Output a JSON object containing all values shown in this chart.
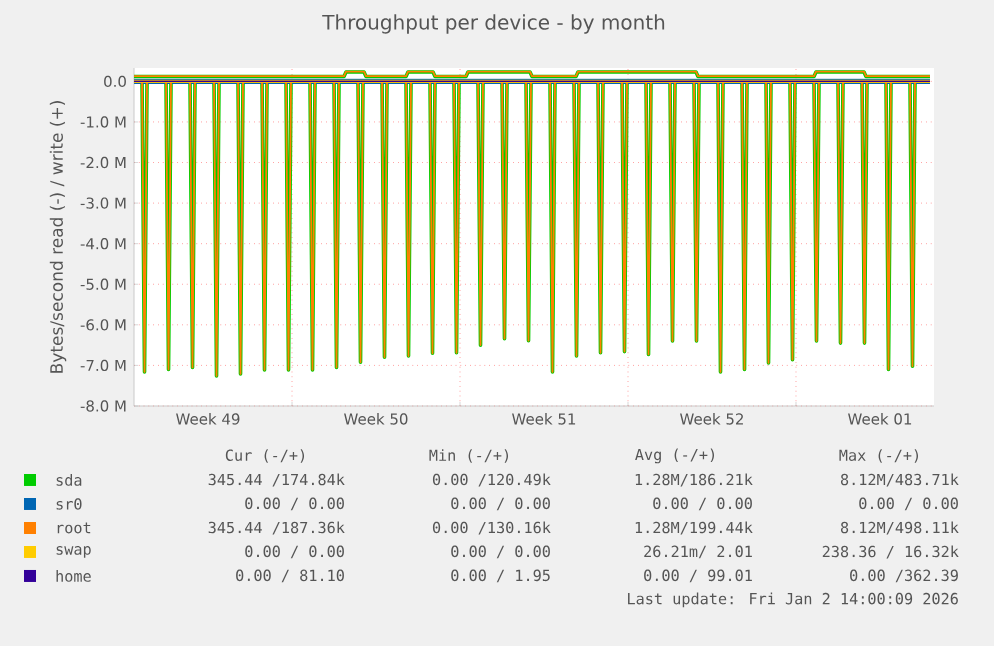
{
  "chart_data": {
    "type": "line",
    "title": "Throughput per device - by month",
    "ylabel": "Bytes/second read (-) / write (+)",
    "x": [
      "2025-12-01T18:00",
      "2025-12-01T20:30",
      "2025-12-01T23:00",
      "2025-12-02T18:00",
      "2025-12-02T20:30",
      "2025-12-02T23:00",
      "2025-12-03T18:00",
      "2025-12-03T20:30",
      "2025-12-03T23:00",
      "2025-12-04T18:00",
      "2025-12-04T20:30",
      "2025-12-04T23:00",
      "2025-12-05T18:00",
      "2025-12-05T20:30",
      "2025-12-05T23:00",
      "2025-12-06T18:00",
      "2025-12-06T20:30",
      "2025-12-06T23:00",
      "2025-12-07T18:00",
      "2025-12-07T20:30",
      "2025-12-07T23:00",
      "2025-12-08T18:00",
      "2025-12-08T20:30",
      "2025-12-08T23:00",
      "2025-12-09T18:00",
      "2025-12-09T20:30",
      "2025-12-09T23:00",
      "2025-12-10T18:00",
      "2025-12-10T20:30",
      "2025-12-10T23:00",
      "2025-12-11T18:00",
      "2025-12-11T20:30",
      "2025-12-11T23:00",
      "2025-12-12T18:00",
      "2025-12-12T20:30",
      "2025-12-12T23:00",
      "2025-12-13T18:00",
      "2025-12-13T20:30",
      "2025-12-13T23:00",
      "2025-12-14T18:00",
      "2025-12-14T20:30",
      "2025-12-14T23:00",
      "2025-12-15T18:00",
      "2025-12-15T20:30",
      "2025-12-15T23:00",
      "2025-12-16T18:00",
      "2025-12-16T20:30",
      "2025-12-16T23:00",
      "2025-12-17T18:00",
      "2025-12-17T20:30",
      "2025-12-17T23:00",
      "2025-12-18T18:00",
      "2025-12-18T20:30",
      "2025-12-18T23:00",
      "2025-12-19T18:00",
      "2025-12-19T20:30",
      "2025-12-19T23:00",
      "2025-12-20T18:00",
      "2025-12-20T20:30",
      "2025-12-20T23:00",
      "2025-12-21T18:00",
      "2025-12-21T20:30",
      "2025-12-21T23:00",
      "2025-12-22T18:00",
      "2025-12-22T20:30",
      "2025-12-22T23:00",
      "2025-12-23T18:00",
      "2025-12-23T20:30",
      "2025-12-23T23:00",
      "2025-12-24T18:00",
      "2025-12-24T20:30",
      "2025-12-24T23:00",
      "2025-12-25T18:00",
      "2025-12-25T20:30",
      "2025-12-25T23:00",
      "2025-12-26T18:00",
      "2025-12-26T20:30",
      "2025-12-26T23:00",
      "2025-12-27T18:00",
      "2025-12-27T20:30",
      "2025-12-27T23:00",
      "2025-12-28T18:00",
      "2025-12-28T20:30",
      "2025-12-28T23:00",
      "2025-12-29T18:00",
      "2025-12-29T20:30",
      "2025-12-29T23:00",
      "2025-12-30T18:00",
      "2025-12-30T20:30",
      "2025-12-30T23:00",
      "2025-12-31T18:00",
      "2025-12-31T20:30",
      "2025-12-31T23:00",
      "2026-01-01T18:00",
      "2026-01-01T20:30",
      "2026-01-01T23:00",
      "2026-01-02T18:00",
      "2026-01-02T20:30",
      "2026-01-02T23:00"
    ],
    "series": [
      {
        "name": "sda",
        "color": "#00cc00",
        "x": [
          "2025-12-01T10:00",
          "2025-12-10T04:00",
          "2025-12-10T06:00",
          "2025-12-11T00:00",
          "2025-12-11T02:00",
          "2025-12-12T18:00",
          "2025-12-12T20:00",
          "2025-12-13T21:00",
          "2025-12-13T23:00",
          "2025-12-15T06:00",
          "2025-12-15T08:00",
          "2025-12-17T22:00",
          "2025-12-18T00:00",
          "2025-12-19T20:00",
          "2025-12-19T22:00",
          "2025-12-24T20:00",
          "2025-12-24T22:00",
          "2025-12-29T18:00",
          "2025-12-29T20:00",
          "2025-12-31T20:00",
          "2025-12-31T22:00",
          "2026-01-03T14:00"
        ],
        "values": [
          120000,
          120000,
          230000,
          230000,
          120000,
          120000,
          230000,
          230000,
          120000,
          120000,
          230000,
          230000,
          120000,
          120000,
          230000,
          230000,
          120000,
          120000,
          230000,
          230000,
          120000,
          120000
        ]
      },
      {
        "color": "#00cc00",
        "values": [
          0,
          -7160000,
          0,
          0,
          -7100000,
          0,
          0,
          -7050000,
          0,
          0,
          -7260000,
          0,
          0,
          -7210000,
          0,
          0,
          -7110000,
          0,
          0,
          -7110000,
          0,
          0,
          -7110000,
          0,
          0,
          -7050000,
          0,
          0,
          -6920000,
          0,
          0,
          -6800000,
          0,
          0,
          -6770000,
          0,
          0,
          -6700000,
          0,
          0,
          -6690000,
          0,
          0,
          -6500000,
          0,
          0,
          -6340000,
          0,
          0,
          -6390000,
          0,
          0,
          -7160000,
          0,
          0,
          -6770000,
          0,
          0,
          -6690000,
          0,
          0,
          -6660000,
          0,
          0,
          -6730000,
          0,
          0,
          -6400000,
          0,
          0,
          -6400000,
          0,
          0,
          -7160000,
          0,
          0,
          -7100000,
          0,
          0,
          -6940000,
          0,
          0,
          -6860000,
          0,
          0,
          -6400000,
          0,
          0,
          -6450000,
          0,
          0,
          -6450000,
          0,
          0,
          -7100000,
          0,
          0,
          -7020000,
          0
        ]
      },
      {
        "name": "sr0",
        "color": "#0066b3",
        "x": [
          "2025-12-01T10:00",
          "2026-01-03T14:00"
        ],
        "values": [
          0,
          0
        ]
      },
      {
        "name": "root",
        "color": "#ff8000",
        "x": [
          "2025-12-01T10:00",
          "2025-12-10T04:00",
          "2025-12-10T06:00",
          "2025-12-11T00:00",
          "2025-12-11T02:00",
          "2025-12-12T18:00",
          "2025-12-12T20:00",
          "2025-12-13T21:00",
          "2025-12-13T23:00",
          "2025-12-15T06:00",
          "2025-12-15T08:00",
          "2025-12-17T22:00",
          "2025-12-18T00:00",
          "2025-12-19T20:00",
          "2025-12-19T22:00",
          "2025-12-24T20:00",
          "2025-12-24T22:00",
          "2025-12-29T18:00",
          "2025-12-29T20:00",
          "2025-12-31T20:00",
          "2025-12-31T22:00",
          "2026-01-03T14:00"
        ],
        "values": [
          130000,
          130000,
          240000,
          240000,
          130000,
          130000,
          240000,
          240000,
          130000,
          130000,
          240000,
          240000,
          130000,
          130000,
          240000,
          240000,
          130000,
          130000,
          240000,
          240000,
          130000,
          130000
        ]
      },
      {
        "color": "#ff8000",
        "values": [
          0,
          -7160000,
          0,
          0,
          -7100000,
          0,
          0,
          -7050000,
          0,
          0,
          -7260000,
          0,
          0,
          -7210000,
          0,
          0,
          -7110000,
          0,
          0,
          -7110000,
          0,
          0,
          -7110000,
          0,
          0,
          -7050000,
          0,
          0,
          -6920000,
          0,
          0,
          -6800000,
          0,
          0,
          -6770000,
          0,
          0,
          -6700000,
          0,
          0,
          -6690000,
          0,
          0,
          -6500000,
          0,
          0,
          -6340000,
          0,
          0,
          -6390000,
          0,
          0,
          -7160000,
          0,
          0,
          -6770000,
          0,
          0,
          -6690000,
          0,
          0,
          -6660000,
          0,
          0,
          -6730000,
          0,
          0,
          -6400000,
          0,
          0,
          -6400000,
          0,
          0,
          -7160000,
          0,
          0,
          -7100000,
          0,
          0,
          -6940000,
          0,
          0,
          -6860000,
          0,
          0,
          -6400000,
          0,
          0,
          -6450000,
          0,
          0,
          -6450000,
          0,
          0,
          -7100000,
          0,
          0,
          -7020000,
          0
        ]
      },
      {
        "name": "swap",
        "color": "#ffcc00",
        "x": [
          "2025-12-01T10:00",
          "2026-01-03T14:00"
        ],
        "values": [
          0,
          0
        ]
      },
      {
        "name": "home",
        "color": "#330099",
        "x": [
          "2025-12-01T10:00",
          "2026-01-03T14:00"
        ],
        "values": [
          0,
          0
        ]
      }
    ],
    "xlim": [
      "2025-12-01T10:00",
      "2026-01-03T18:00"
    ],
    "xticks": [
      {
        "value": "2025-12-04T12:00",
        "label": "Week 49"
      },
      {
        "value": "2025-12-08",
        "label": null
      },
      {
        "value": "2025-12-11T12:00",
        "label": "Week 50"
      },
      {
        "value": "2025-12-15",
        "label": null
      },
      {
        "value": "2025-12-18T12:00",
        "label": "Week 51"
      },
      {
        "value": "2025-12-22",
        "label": null
      },
      {
        "value": "2025-12-25T12:00",
        "label": "Week 52"
      },
      {
        "value": "2025-12-29",
        "label": null
      },
      {
        "value": "2026-01-01T12:00",
        "label": "Week 01"
      }
    ],
    "ylim": [
      -8000000,
      330000
    ],
    "yticks": [
      {
        "value": -8000000,
        "label": "-8.0 M"
      },
      {
        "value": -7000000,
        "label": "-7.0 M"
      },
      {
        "value": -6000000,
        "label": "-6.0 M"
      },
      {
        "value": -5000000,
        "label": "-5.0 M"
      },
      {
        "value": -4000000,
        "label": "-4.0 M"
      },
      {
        "value": -3000000,
        "label": "-3.0 M"
      },
      {
        "value": -2000000,
        "label": "-2.0 M"
      },
      {
        "value": -1000000,
        "label": "-1.0 M"
      },
      {
        "value": 0,
        "label": "0.0"
      }
    ],
    "grid": true,
    "legend": "bottom",
    "marker": "none",
    "line_style": "solid",
    "annotations": [
      "Cur (-/+)",
      "Min (-/+)",
      "Avg (-/+)",
      "Max (-/+)",
      "345.44 /174.84k",
      "0.00 /120.49k",
      "1.28M/186.21k",
      "8.12M/483.71k",
      "0.00 /  0.00",
      "0.00 /  0.00",
      "0.00 /  0.00",
      "0.00 /  0.00",
      "345.44 /187.36k",
      "0.00 /130.16k",
      "1.28M/199.44k",
      "8.12M/498.11k",
      "0.00 /  0.00",
      "0.00 /  0.00",
      "26.21m/  2.01",
      "238.36 / 16.32k",
      "0.00 / 81.10",
      "0.00 /  1.95",
      "0.00 / 99.01",
      "0.00 /362.39",
      "Last update: Fri Jan  2 14:00:09 2026"
    ]
  }
}
